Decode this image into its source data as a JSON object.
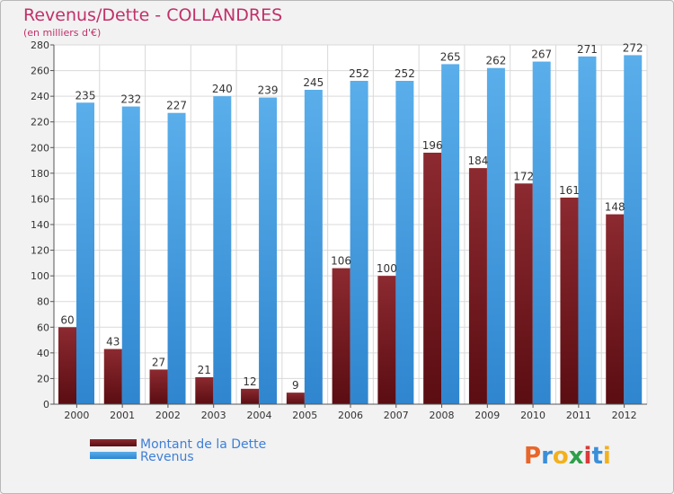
{
  "chart_data": {
    "type": "bar",
    "title": "Revenus/Dette - COLLANDRES",
    "subtitle": "(en milliers d'€)",
    "categories": [
      "2000",
      "2001",
      "2002",
      "2003",
      "2004",
      "2005",
      "2006",
      "2007",
      "2008",
      "2009",
      "2010",
      "2011",
      "2012"
    ],
    "series": [
      {
        "name": "Montant de la Dette",
        "color": "#7a1e24",
        "values": [
          60,
          43,
          27,
          21,
          12,
          9,
          106,
          100,
          196,
          184,
          172,
          161,
          148
        ]
      },
      {
        "name": "Revenus",
        "color": "#4aa3e6",
        "values": [
          235,
          232,
          227,
          240,
          239,
          245,
          252,
          252,
          265,
          262,
          267,
          271,
          272
        ]
      }
    ],
    "ylim": [
      0,
      280
    ],
    "yticks": [
      0,
      20,
      40,
      60,
      80,
      100,
      120,
      140,
      160,
      180,
      200,
      220,
      240,
      260,
      280
    ],
    "grid": true,
    "legend_position": "bottom-left"
  },
  "branding": {
    "logo_text": "Proxiti"
  }
}
